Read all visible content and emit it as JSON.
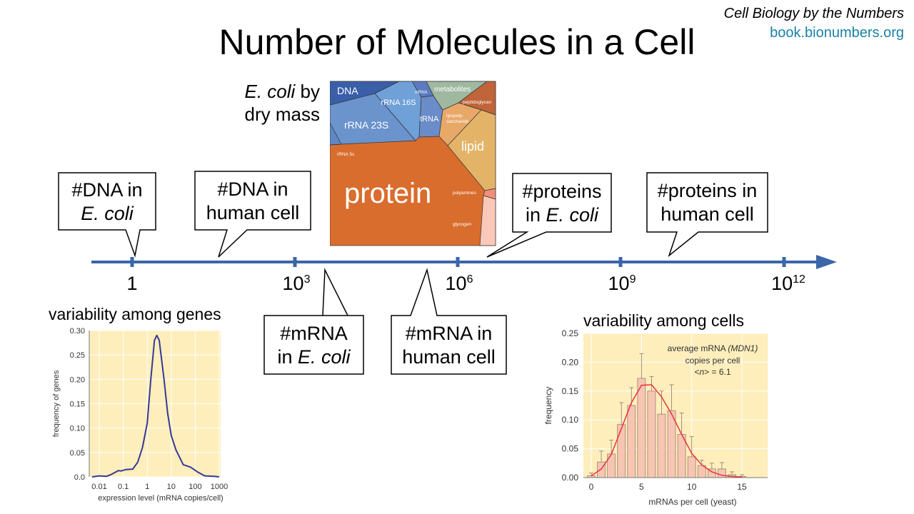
{
  "header": {
    "title": "Number of Molecules in a Cell",
    "brand_line1": "Cell Biology by the Numbers",
    "brand_line2": "book.bionumbers.org"
  },
  "colors": {
    "axis": "#3b66a8",
    "link": "#1a7fa8",
    "chart_bg": "#fdeebb",
    "curve": "#35389a",
    "bar": "#f6c6b3",
    "fit": "#e8323f"
  },
  "axis": {
    "ticks": [
      {
        "base": "1",
        "exp": ""
      },
      {
        "base": "10",
        "exp": "3"
      },
      {
        "base": "10",
        "exp": "6"
      },
      {
        "base": "10",
        "exp": "9"
      },
      {
        "base": "10",
        "exp": "12"
      }
    ]
  },
  "callouts": {
    "dna_ecoli": {
      "line1": "#DNA in",
      "line2": "E. coli"
    },
    "dna_human": {
      "line1": "#DNA in",
      "line2": "human cell"
    },
    "proteins_ecoli": {
      "line1": "#proteins",
      "line2_a": "in ",
      "line2_b": "E. coli"
    },
    "proteins_human": {
      "line1": "#proteins in",
      "line2": "human cell"
    },
    "mrna_ecoli": {
      "line1": "#mRNA",
      "line2_a": "in ",
      "line2_b": "E. coli"
    },
    "mrna_human": {
      "line1": "#mRNA in",
      "line2": "human cell"
    }
  },
  "drymass": {
    "label_a": "E. coli",
    "label_b": " by",
    "label_c": "dry mass",
    "segments": [
      "DNA",
      "rRNA 23S",
      "rRNA 16S",
      "mRNA",
      "tRNA",
      "metabolites",
      "peptidoglycan",
      "lipopoly-",
      "saccharide",
      "lipid",
      "rRNA 5s",
      "protein",
      "polyamines",
      "glycogen"
    ]
  },
  "chart_data": [
    {
      "type": "line",
      "title": "variability among genes",
      "xlabel": "expression level (mRNA copies/cell)",
      "ylabel": "frequency of genes",
      "xscale": "log",
      "xlim": [
        0.005,
        1000
      ],
      "ylim": [
        0,
        0.3
      ],
      "xticks": [
        "0.01",
        "0.1",
        "1",
        "10",
        "100",
        "1000"
      ],
      "yticks": [
        "0.0",
        "0.05",
        "0.10",
        "0.15",
        "0.20",
        "0.25",
        "0.30"
      ],
      "x_log10": [
        -2.3,
        -2,
        -1.7,
        -1.5,
        -1.2,
        -1.1,
        -0.9,
        -0.6,
        -0.4,
        -0.2,
        0,
        0.15,
        0.3,
        0.4,
        0.5,
        0.7,
        0.85,
        1.0,
        1.2,
        1.5,
        1.8,
        2.1,
        2.4,
        2.8,
        3.0
      ],
      "y": [
        0,
        0.002,
        0.001,
        0.005,
        0.013,
        0.012,
        0.015,
        0.016,
        0.03,
        0.06,
        0.11,
        0.2,
        0.28,
        0.29,
        0.28,
        0.2,
        0.13,
        0.085,
        0.055,
        0.025,
        0.02,
        0.01,
        0.002,
        0.001,
        0
      ],
      "grid": true
    },
    {
      "type": "bar",
      "title": "variability among cells",
      "xlabel": "mRNAs per cell (yeast)",
      "ylabel": "frequency",
      "xlim": [
        -0.5,
        17.5
      ],
      "ylim": [
        0,
        0.25
      ],
      "xticks": [
        "0",
        "5",
        "10",
        "15"
      ],
      "yticks": [
        "0.00",
        "0.05",
        "0.10",
        "0.15",
        "0.20",
        "0.25"
      ],
      "x": [
        0,
        1,
        2,
        3,
        4,
        5,
        6,
        7,
        8,
        9,
        10,
        11,
        12,
        13,
        14,
        15
      ],
      "values": [
        0.003,
        0.027,
        0.041,
        0.092,
        0.125,
        0.172,
        0.15,
        0.11,
        0.116,
        0.075,
        0.036,
        0.021,
        0.015,
        0.015,
        0.005,
        0.002
      ],
      "error_top": [
        0.008,
        0.046,
        0.065,
        0.13,
        0.156,
        0.215,
        0.175,
        0.15,
        0.161,
        0.112,
        0.071,
        0.03,
        0.025,
        0.026,
        0.01,
        0.005
      ],
      "fit": [
        0.003,
        0.015,
        0.04,
        0.085,
        0.13,
        0.16,
        0.161,
        0.14,
        0.11,
        0.075,
        0.042,
        0.022,
        0.01,
        0.004,
        0.002,
        0.001
      ],
      "annotation": {
        "line1_a": "average mRNA ",
        "line1_b": "(MDN1)",
        "line2": "copies per cell",
        "line3_a": "<",
        "line3_b": "n",
        "line3_c": "> = 6.1"
      },
      "grid": true
    }
  ]
}
